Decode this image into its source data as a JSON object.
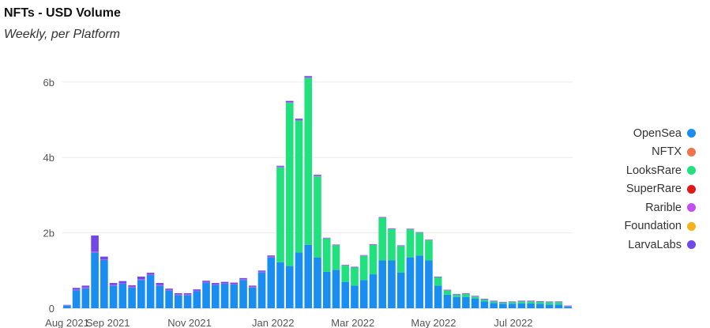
{
  "header": {
    "title": "NFTs - USD Volume",
    "subtitle": "Weekly, per Platform"
  },
  "chart_data": {
    "type": "bar",
    "stacked": true,
    "title": "NFTs - USD Volume",
    "subtitle": "Weekly, per Platform",
    "ylim": [
      0,
      6500000000
    ],
    "y_ticks": [
      0,
      2000000000,
      4000000000,
      6000000000
    ],
    "y_tick_labels": [
      "0",
      "2b",
      "4b",
      "6b"
    ],
    "x_tick_labels": [
      {
        "label": "Aug 2021",
        "index": 0
      },
      {
        "label": "Sep 2021",
        "index": 4.4
      },
      {
        "label": "Nov 2021",
        "index": 13.2
      },
      {
        "label": "Jan 2022",
        "index": 22.2
      },
      {
        "label": "Mar 2022",
        "index": 30.8
      },
      {
        "label": "May 2022",
        "index": 39.5
      },
      {
        "label": "Jul 2022",
        "index": 48.1
      }
    ],
    "grid": true,
    "legend_position": "right",
    "colors": {
      "OpenSea": "#1a8ef0",
      "NFTX": "#f0734a",
      "LooksRare": "#21e07e",
      "SuperRare": "#e01818",
      "Rarible": "#c64df0",
      "Foundation": "#f5b01b",
      "LarvaLabs": "#7048e8"
    },
    "series": [
      {
        "name": "OpenSea",
        "values": [
          0.07,
          0.48,
          0.53,
          1.48,
          1.28,
          0.6,
          0.65,
          0.55,
          0.75,
          0.88,
          0.6,
          0.47,
          0.35,
          0.35,
          0.45,
          0.68,
          0.62,
          0.65,
          0.63,
          0.75,
          0.55,
          0.95,
          1.35,
          1.22,
          1.12,
          1.48,
          1.68,
          1.35,
          0.97,
          1.02,
          0.7,
          0.6,
          0.75,
          0.9,
          1.27,
          1.27,
          0.95,
          1.35,
          1.4,
          1.27,
          0.6,
          0.36,
          0.3,
          0.3,
          0.26,
          0.18,
          0.14,
          0.12,
          0.12,
          0.13,
          0.13,
          0.12,
          0.1,
          0.1,
          0.04
        ]
      },
      {
        "name": "NFTX",
        "values": [
          0,
          0,
          0,
          0,
          0,
          0,
          0,
          0,
          0,
          0,
          0,
          0,
          0,
          0,
          0,
          0,
          0,
          0,
          0,
          0,
          0,
          0,
          0,
          0,
          0,
          0,
          0,
          0,
          0,
          0,
          0,
          0,
          0,
          0,
          0,
          0,
          0,
          0,
          0,
          0,
          0,
          0,
          0,
          0,
          0,
          0,
          0,
          0,
          0,
          0,
          0,
          0,
          0,
          0,
          0
        ]
      },
      {
        "name": "LooksRare",
        "values": [
          0,
          0,
          0,
          0,
          0,
          0,
          0,
          0,
          0,
          0,
          0,
          0,
          0,
          0,
          0,
          0,
          0,
          0,
          0,
          0,
          0,
          0,
          0,
          2.52,
          4.33,
          3.5,
          4.43,
          2.15,
          0.88,
          0.65,
          0.43,
          0.48,
          0.64,
          0.78,
          1.13,
          0.83,
          0.7,
          0.74,
          0.6,
          0.53,
          0.22,
          0.11,
          0.06,
          0.08,
          0.05,
          0.05,
          0.04,
          0.03,
          0.04,
          0.05,
          0.05,
          0.05,
          0.06,
          0.06,
          0.01
        ]
      },
      {
        "name": "SuperRare",
        "values": [
          0,
          0,
          0,
          0,
          0,
          0,
          0,
          0,
          0,
          0,
          0,
          0,
          0,
          0,
          0,
          0,
          0,
          0,
          0,
          0,
          0,
          0,
          0,
          0,
          0,
          0,
          0,
          0,
          0,
          0,
          0,
          0,
          0,
          0,
          0,
          0,
          0,
          0,
          0,
          0,
          0,
          0,
          0,
          0,
          0,
          0,
          0,
          0,
          0,
          0,
          0,
          0,
          0,
          0,
          0
        ]
      },
      {
        "name": "Rarible",
        "values": [
          0.01,
          0.02,
          0.02,
          0.03,
          0.02,
          0.02,
          0.02,
          0.02,
          0.02,
          0.02,
          0.02,
          0.02,
          0.02,
          0.02,
          0.02,
          0.02,
          0.02,
          0.02,
          0.02,
          0.02,
          0.02,
          0.02,
          0.02,
          0.02,
          0.02,
          0.02,
          0.02,
          0.02,
          0.01,
          0.01,
          0.01,
          0.01,
          0.01,
          0.01,
          0.01,
          0.01,
          0.01,
          0.01,
          0.01,
          0.01,
          0.01,
          0.01,
          0.01,
          0.01,
          0.01,
          0.01,
          0.01,
          0.01,
          0.01,
          0.01,
          0.01,
          0.01,
          0.01,
          0.01,
          0.01
        ]
      },
      {
        "name": "Foundation",
        "values": [
          0,
          0,
          0,
          0,
          0,
          0,
          0,
          0,
          0,
          0,
          0,
          0,
          0,
          0,
          0,
          0,
          0,
          0,
          0,
          0,
          0,
          0,
          0,
          0,
          0,
          0,
          0,
          0,
          0,
          0,
          0,
          0,
          0,
          0,
          0,
          0,
          0,
          0,
          0,
          0,
          0,
          0,
          0,
          0,
          0,
          0,
          0,
          0,
          0,
          0,
          0,
          0,
          0,
          0,
          0
        ]
      },
      {
        "name": "LarvaLabs",
        "values": [
          0.01,
          0.04,
          0.05,
          0.42,
          0.07,
          0.05,
          0.05,
          0.04,
          0.07,
          0.04,
          0.05,
          0.03,
          0.03,
          0.03,
          0.03,
          0.03,
          0.03,
          0.03,
          0.03,
          0.03,
          0.03,
          0.03,
          0.03,
          0.02,
          0.03,
          0.03,
          0.03,
          0.02,
          0.01,
          0.01,
          0.01,
          0.01,
          0.01,
          0.01,
          0.01,
          0.01,
          0.01,
          0.01,
          0.01,
          0.01,
          0.01,
          0.01,
          0.01,
          0.01,
          0.01,
          0.01,
          0.01,
          0.01,
          0.01,
          0.01,
          0.01,
          0.01,
          0.01,
          0.01,
          0.01
        ]
      }
    ]
  }
}
